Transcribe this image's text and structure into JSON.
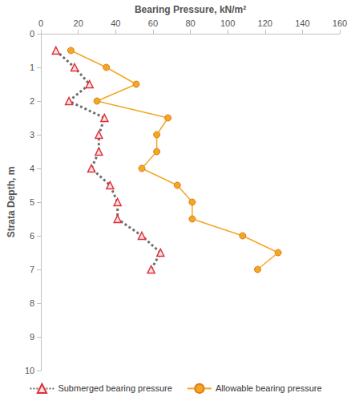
{
  "chart_data": {
    "type": "line",
    "x_label": "Bearing Pressure, kN/m²",
    "y_label": "Strata Depth, m",
    "xlim": [
      0,
      160
    ],
    "xticks": [
      0,
      20,
      40,
      60,
      80,
      100,
      120,
      140,
      160
    ],
    "ylim": [
      0,
      10
    ],
    "yticks": [
      0,
      1,
      2,
      3,
      4,
      5,
      6,
      7,
      8,
      9,
      10
    ],
    "grid": false,
    "legend": "bottom",
    "series": [
      {
        "name": "Submerged bearing pressure",
        "color": "#e0303a",
        "marker": "triangle",
        "line_style": "dotted",
        "x": [
          8,
          18,
          26,
          15,
          34,
          31,
          31,
          27,
          37,
          41,
          41,
          54,
          64,
          59
        ],
        "y": [
          0.5,
          1,
          1.5,
          2,
          2.5,
          3,
          3.5,
          4,
          4.5,
          5,
          5.5,
          6,
          6.5,
          7
        ]
      },
      {
        "name": "Allowable bearing pressure",
        "color": "#f5a623",
        "marker": "circle",
        "line_style": "solid",
        "x": [
          16,
          35,
          51,
          30,
          68,
          62,
          62,
          54,
          73,
          81,
          81,
          108,
          127,
          116
        ],
        "y": [
          0.5,
          1,
          1.5,
          2,
          2.5,
          3,
          3.5,
          4,
          4.5,
          5,
          5.5,
          6,
          6.5,
          7
        ]
      }
    ]
  }
}
